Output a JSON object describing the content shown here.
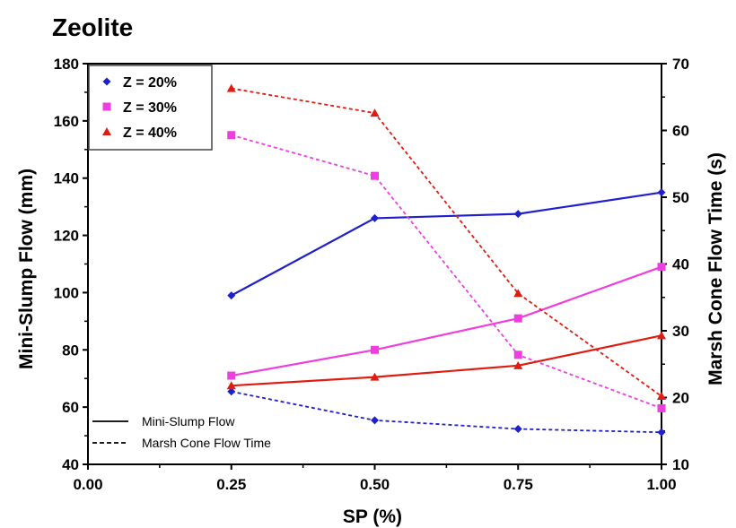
{
  "chart_data": {
    "type": "line",
    "title": "Zeolite",
    "xlabel": "SP (%)",
    "ylabel": "Mini-Slump Flow (mm)",
    "y2label": "Marsh Cone Flow Time (s)",
    "xlim": [
      0,
      1
    ],
    "ylim": [
      40,
      180
    ],
    "y2lim": [
      10,
      70
    ],
    "x_ticks": [
      "0.00",
      "0.25",
      "0.50",
      "0.75",
      "1.00"
    ],
    "y_ticks": [
      "40",
      "60",
      "80",
      "100",
      "120",
      "140",
      "160",
      "180"
    ],
    "y2_ticks": [
      "10",
      "20",
      "30",
      "40",
      "50",
      "60",
      "70"
    ],
    "x": [
      0.25,
      0.5,
      0.75,
      1.0
    ],
    "series": [
      {
        "name": "Z = 20%",
        "color": "#1f1fcc",
        "marker": "diamond",
        "mini_slump": [
          99,
          126,
          127.5,
          135
        ],
        "marsh_cone": [
          20.9,
          16.6,
          15.3,
          14.8
        ]
      },
      {
        "name": "Z = 30%",
        "color": "#ee3ee0",
        "marker": "square",
        "mini_slump": [
          71,
          80,
          91,
          109
        ],
        "marsh_cone": [
          59.3,
          53.2,
          26.4,
          18.4
        ]
      },
      {
        "name": "Z = 40%",
        "color": "#dd1d12",
        "marker": "triangle",
        "mini_slump": [
          67.5,
          70.5,
          74.5,
          85
        ],
        "marsh_cone": [
          66.3,
          62.6,
          35.6,
          20.2
        ]
      }
    ],
    "legend_placement": "top-left",
    "line_style_legend": [
      {
        "label": "Mini-Slump Flow",
        "style": "solid"
      },
      {
        "label": "Marsh Cone Flow Time",
        "style": "dashed"
      }
    ],
    "grid": false
  }
}
